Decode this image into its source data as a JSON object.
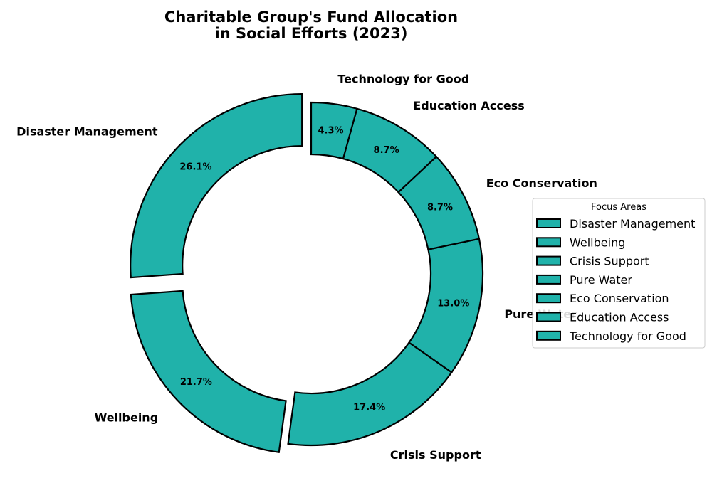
{
  "chart_data": {
    "type": "pie",
    "variant": "donut",
    "title": "Charitable Group's Fund Allocation\nin Social Efforts (2023)",
    "title_lines": [
      "Charitable Group's Fund Allocation",
      "in Social Efforts (2023)"
    ],
    "categories": [
      "Disaster Management",
      "Wellbeing",
      "Crisis Support",
      "Pure Water",
      "Eco Conservation",
      "Education Access",
      "Technology for Good"
    ],
    "values": [
      26.1,
      21.7,
      17.4,
      13.0,
      8.7,
      8.7,
      4.3
    ],
    "percent_labels": [
      "26.1%",
      "21.7%",
      "17.4%",
      "13.0%",
      "8.7%",
      "8.7%",
      "4.3%"
    ],
    "exploded": [
      true,
      true,
      false,
      false,
      false,
      false,
      false
    ],
    "start_angle_deg": 90,
    "direction": "counterclockwise",
    "slice_color": "#20b2aa",
    "edge_color": "#000000",
    "legend": {
      "title": "Focus Areas",
      "placement": "center-right",
      "entries": [
        "Disaster Management",
        "Wellbeing",
        "Crisis Support",
        "Pure Water",
        "Eco Conservation",
        "Education Access",
        "Technology for Good"
      ]
    }
  }
}
